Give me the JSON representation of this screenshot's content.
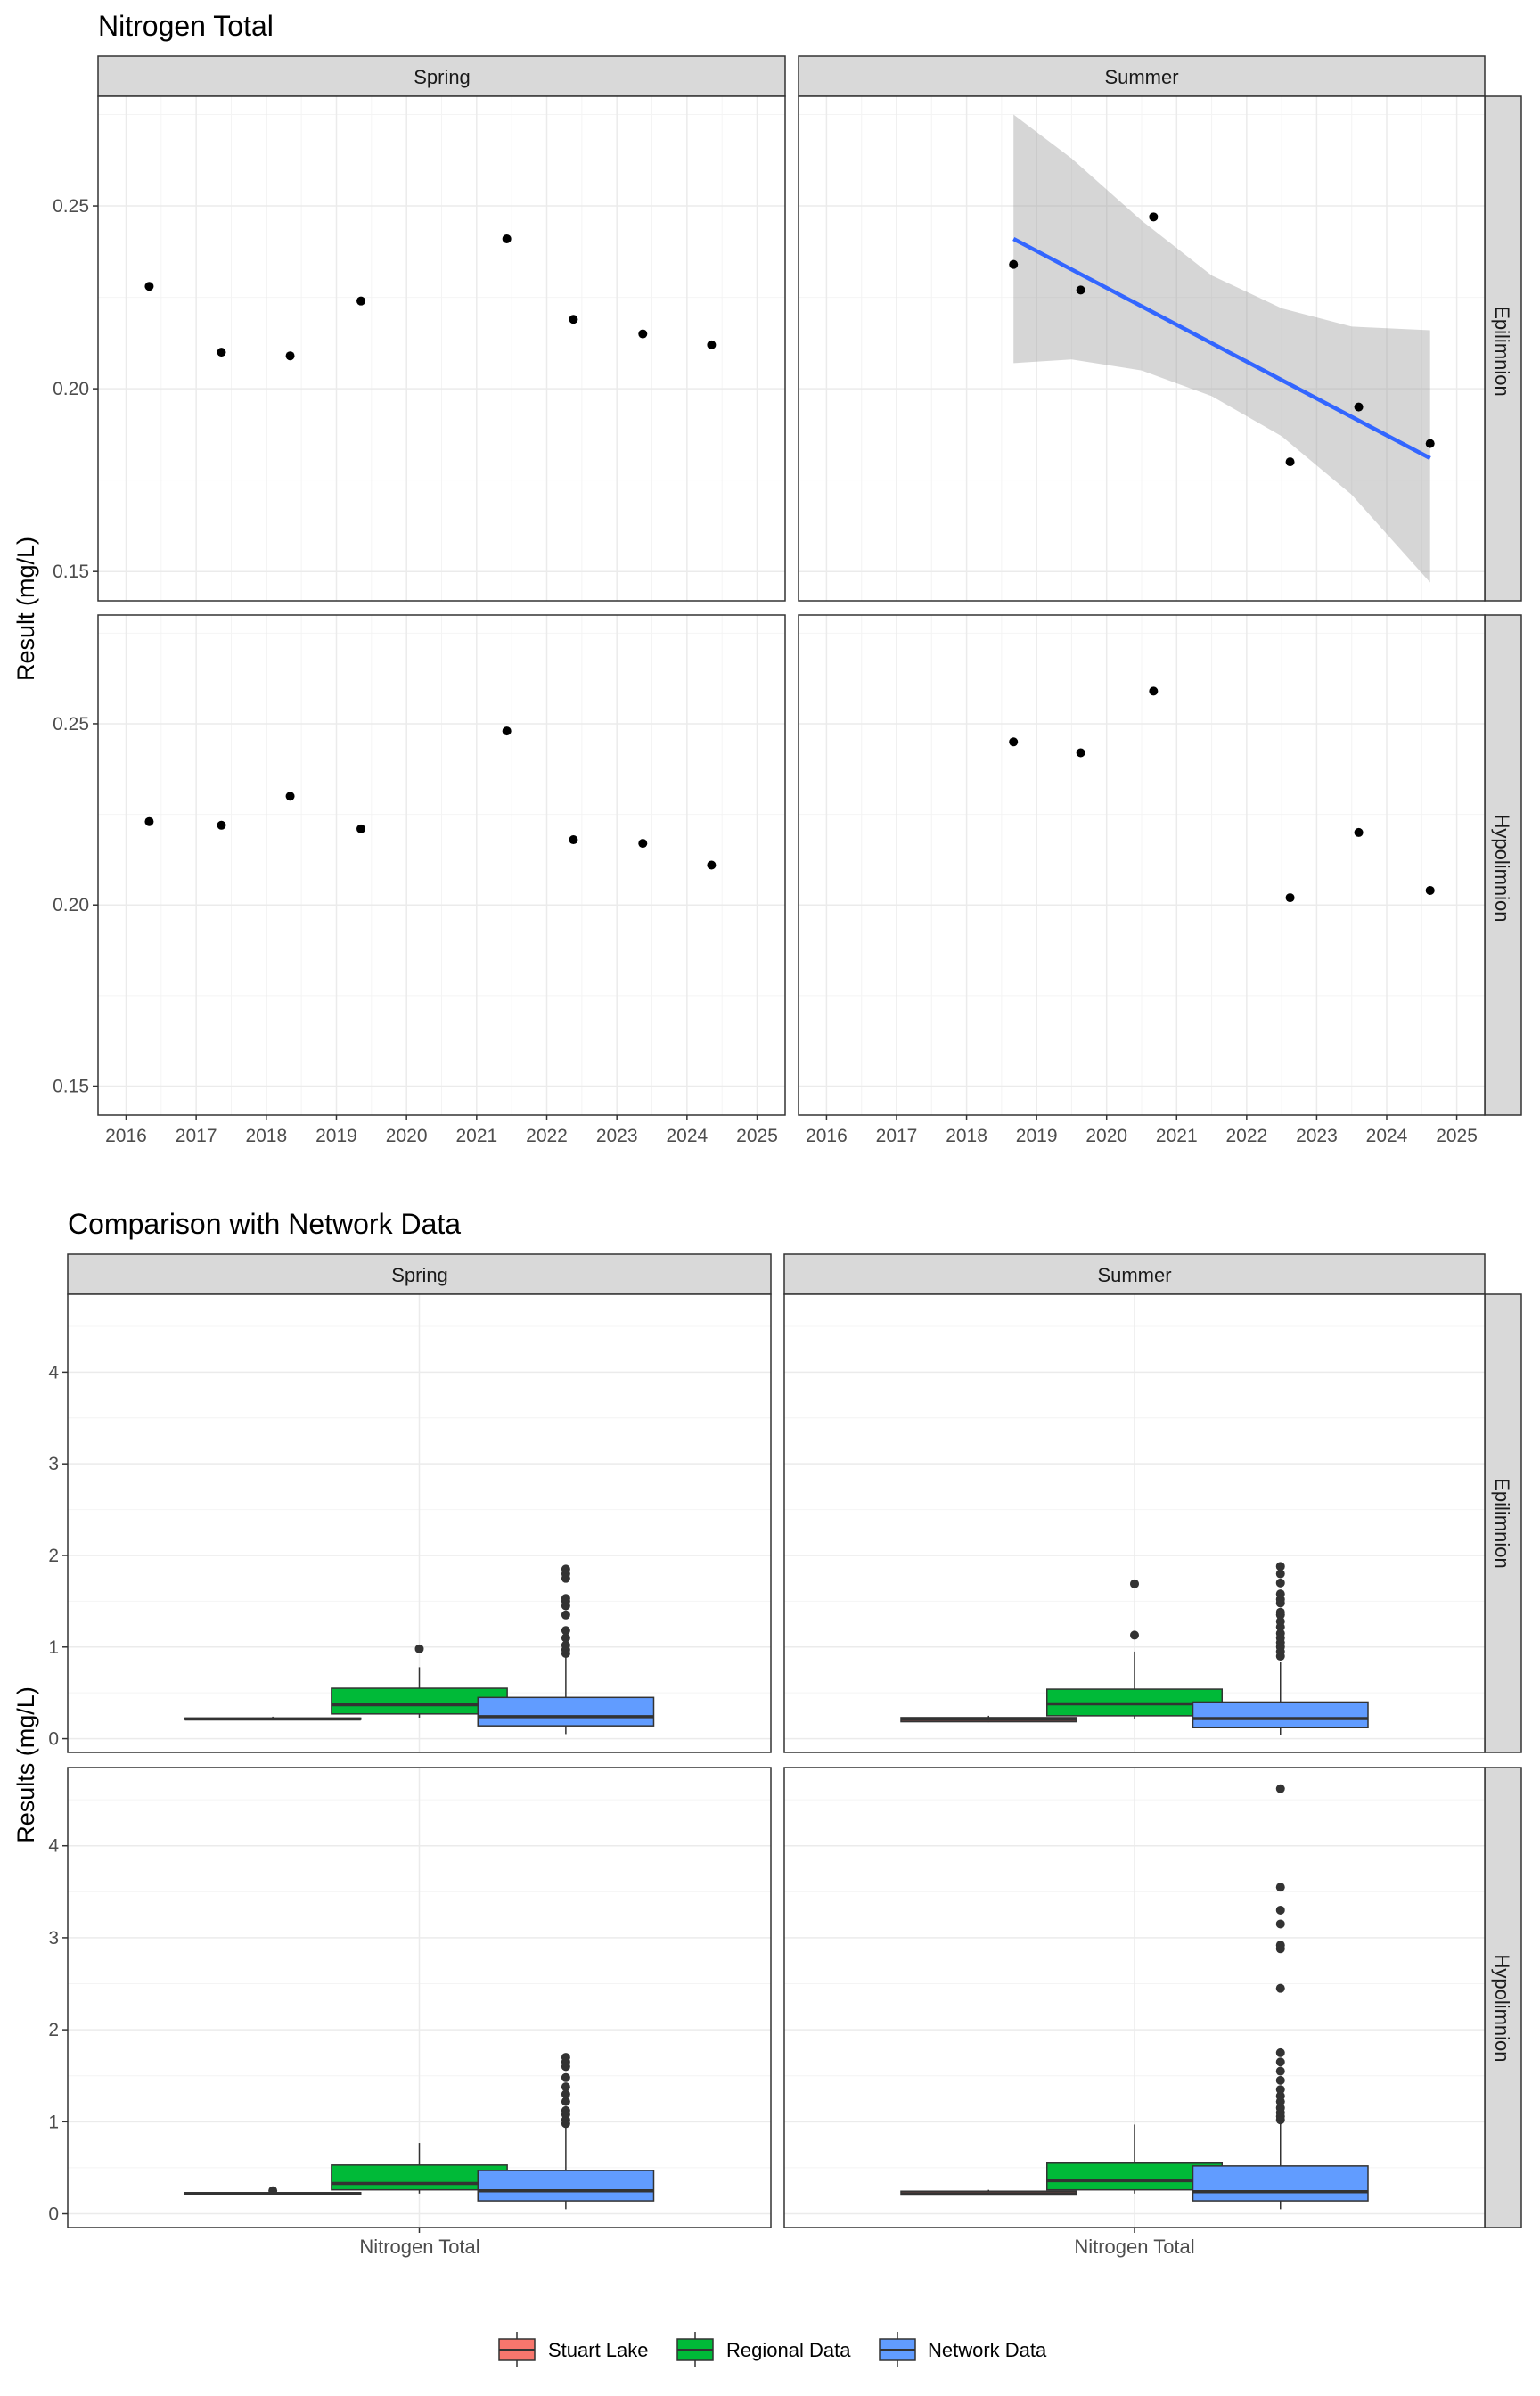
{
  "colors": {
    "panel_border": "#333333",
    "strip_fill": "#d9d9d9",
    "grid_major": "#ebebeb",
    "grid_minor": "#f4f4f4",
    "point": "#000000",
    "trend_line": "#3366ff",
    "ribbon": "#999999",
    "stuart": "#f8766d",
    "regional": "#00ba38",
    "network": "#619cff"
  },
  "chart_data": [
    {
      "type": "scatter",
      "title": "Nitrogen Total",
      "xlabel": "",
      "ylabel": "Result (mg/L)",
      "xlim": [
        2015.6,
        2025.4
      ],
      "ylim": [
        0.142,
        0.28
      ],
      "x_ticks": [
        2016,
        2017,
        2018,
        2019,
        2020,
        2021,
        2022,
        2023,
        2024,
        2025
      ],
      "x_tick_labels": [
        "2016",
        "2017",
        "2018",
        "2019",
        "2020",
        "2021",
        "2022",
        "2023",
        "2024",
        "2025"
      ],
      "y_ticks": [
        0.15,
        0.2,
        0.25
      ],
      "y_tick_labels": [
        "0.15",
        "0.20",
        "0.25"
      ],
      "grid": true,
      "col_facets": [
        "Spring",
        "Summer"
      ],
      "row_facets": [
        "Epilimnion",
        "Hypolimnion"
      ],
      "panels": [
        {
          "col": 0,
          "row": 0,
          "points": [
            {
              "x": 2016.33,
              "y": 0.228
            },
            {
              "x": 2017.36,
              "y": 0.21
            },
            {
              "x": 2018.34,
              "y": 0.209
            },
            {
              "x": 2019.35,
              "y": 0.224
            },
            {
              "x": 2021.43,
              "y": 0.241
            },
            {
              "x": 2022.38,
              "y": 0.219
            },
            {
              "x": 2023.37,
              "y": 0.215
            },
            {
              "x": 2024.35,
              "y": 0.212
            }
          ]
        },
        {
          "col": 1,
          "row": 0,
          "points": [
            {
              "x": 2018.67,
              "y": 0.234
            },
            {
              "x": 2019.63,
              "y": 0.227
            },
            {
              "x": 2020.67,
              "y": 0.247
            },
            {
              "x": 2022.62,
              "y": 0.18
            },
            {
              "x": 2023.6,
              "y": 0.195
            },
            {
              "x": 2024.62,
              "y": 0.185
            }
          ],
          "trend": {
            "x": [
              2018.67,
              2024.62
            ],
            "y": [
              0.241,
              0.181
            ],
            "ribbon_x": [
              2018.67,
              2019.5,
              2020.5,
              2021.5,
              2022.5,
              2023.5,
              2024.62
            ],
            "ribbon_lower": [
              0.207,
              0.208,
              0.205,
              0.198,
              0.187,
              0.171,
              0.147
            ],
            "ribbon_upper": [
              0.275,
              0.263,
              0.246,
              0.231,
              0.222,
              0.217,
              0.216
            ]
          }
        },
        {
          "col": 0,
          "row": 1,
          "points": [
            {
              "x": 2016.33,
              "y": 0.223
            },
            {
              "x": 2017.36,
              "y": 0.222
            },
            {
              "x": 2018.34,
              "y": 0.23
            },
            {
              "x": 2019.35,
              "y": 0.221
            },
            {
              "x": 2021.43,
              "y": 0.248
            },
            {
              "x": 2022.38,
              "y": 0.218
            },
            {
              "x": 2023.37,
              "y": 0.217
            },
            {
              "x": 2024.35,
              "y": 0.211
            }
          ]
        },
        {
          "col": 1,
          "row": 1,
          "points": [
            {
              "x": 2018.67,
              "y": 0.245
            },
            {
              "x": 2019.63,
              "y": 0.242
            },
            {
              "x": 2020.67,
              "y": 0.259
            },
            {
              "x": 2022.62,
              "y": 0.202
            },
            {
              "x": 2023.6,
              "y": 0.22
            },
            {
              "x": 2024.62,
              "y": 0.204
            }
          ]
        }
      ]
    },
    {
      "type": "box",
      "title": "Comparison with Network Data",
      "xlabel": "",
      "ylabel": "Results (mg/L)",
      "categories": [
        "Nitrogen Total"
      ],
      "ylim": [
        -0.15,
        4.85
      ],
      "y_ticks": [
        0,
        1,
        2,
        3,
        4
      ],
      "y_tick_labels": [
        "0",
        "1",
        "2",
        "3",
        "4"
      ],
      "grid": true,
      "col_facets": [
        "Spring",
        "Summer"
      ],
      "row_facets": [
        "Epilimnion",
        "Hypolimnion"
      ],
      "legend": {
        "position": "bottom",
        "entries": [
          {
            "name": "Stuart Lake",
            "color": "#f8766d"
          },
          {
            "name": "Regional Data",
            "color": "#00ba38"
          },
          {
            "name": "Network Data",
            "color": "#619cff"
          }
        ]
      },
      "panels": [
        {
          "col": 0,
          "row": 0,
          "boxes": [
            {
              "group": "Stuart Lake",
              "min": 0.21,
              "q1": 0.21,
              "median": 0.215,
              "q3": 0.225,
              "max": 0.24,
              "outliers": []
            },
            {
              "group": "Regional Data",
              "min": 0.23,
              "q1": 0.27,
              "median": 0.37,
              "q3": 0.55,
              "max": 0.78,
              "outliers": [
                0.98
              ]
            },
            {
              "group": "Network Data",
              "min": 0.05,
              "q1": 0.14,
              "median": 0.24,
              "q3": 0.45,
              "max": 0.9,
              "outliers": [
                0.93,
                0.97,
                1.02,
                1.1,
                1.18,
                1.35,
                1.45,
                1.5,
                1.53,
                1.75,
                1.8,
                1.85
              ]
            }
          ]
        },
        {
          "col": 1,
          "row": 0,
          "boxes": [
            {
              "group": "Stuart Lake",
              "min": 0.18,
              "q1": 0.185,
              "median": 0.21,
              "q3": 0.23,
              "max": 0.25,
              "outliers": []
            },
            {
              "group": "Regional Data",
              "min": 0.22,
              "q1": 0.25,
              "median": 0.38,
              "q3": 0.54,
              "max": 0.95,
              "outliers": [
                1.13,
                1.69
              ]
            },
            {
              "group": "Network Data",
              "min": 0.04,
              "q1": 0.12,
              "median": 0.22,
              "q3": 0.4,
              "max": 0.84,
              "outliers": [
                0.9,
                0.95,
                1.0,
                1.05,
                1.1,
                1.15,
                1.22,
                1.28,
                1.35,
                1.38,
                1.48,
                1.52,
                1.58,
                1.7,
                1.8,
                1.88
              ]
            }
          ]
        },
        {
          "col": 0,
          "row": 1,
          "boxes": [
            {
              "group": "Stuart Lake",
              "min": 0.21,
              "q1": 0.21,
              "median": 0.218,
              "q3": 0.23,
              "max": 0.25,
              "outliers": [
                0.25
              ]
            },
            {
              "group": "Regional Data",
              "min": 0.22,
              "q1": 0.26,
              "median": 0.33,
              "q3": 0.53,
              "max": 0.77,
              "outliers": []
            },
            {
              "group": "Network Data",
              "min": 0.05,
              "q1": 0.14,
              "median": 0.25,
              "q3": 0.47,
              "max": 0.95,
              "outliers": [
                0.98,
                1.02,
                1.08,
                1.12,
                1.22,
                1.3,
                1.38,
                1.48,
                1.6,
                1.65,
                1.7
              ]
            }
          ]
        },
        {
          "col": 1,
          "row": 1,
          "boxes": [
            {
              "group": "Stuart Lake",
              "min": 0.2,
              "q1": 0.204,
              "median": 0.22,
              "q3": 0.245,
              "max": 0.26,
              "outliers": []
            },
            {
              "group": "Regional Data",
              "min": 0.22,
              "q1": 0.26,
              "median": 0.36,
              "q3": 0.55,
              "max": 0.97,
              "outliers": []
            },
            {
              "group": "Network Data",
              "min": 0.05,
              "q1": 0.14,
              "median": 0.24,
              "q3": 0.52,
              "max": 1.0,
              "outliers": [
                1.02,
                1.06,
                1.1,
                1.15,
                1.22,
                1.28,
                1.35,
                1.45,
                1.55,
                1.65,
                1.75,
                2.45,
                2.88,
                2.92,
                3.15,
                3.3,
                3.55,
                4.62
              ]
            }
          ]
        }
      ]
    }
  ]
}
